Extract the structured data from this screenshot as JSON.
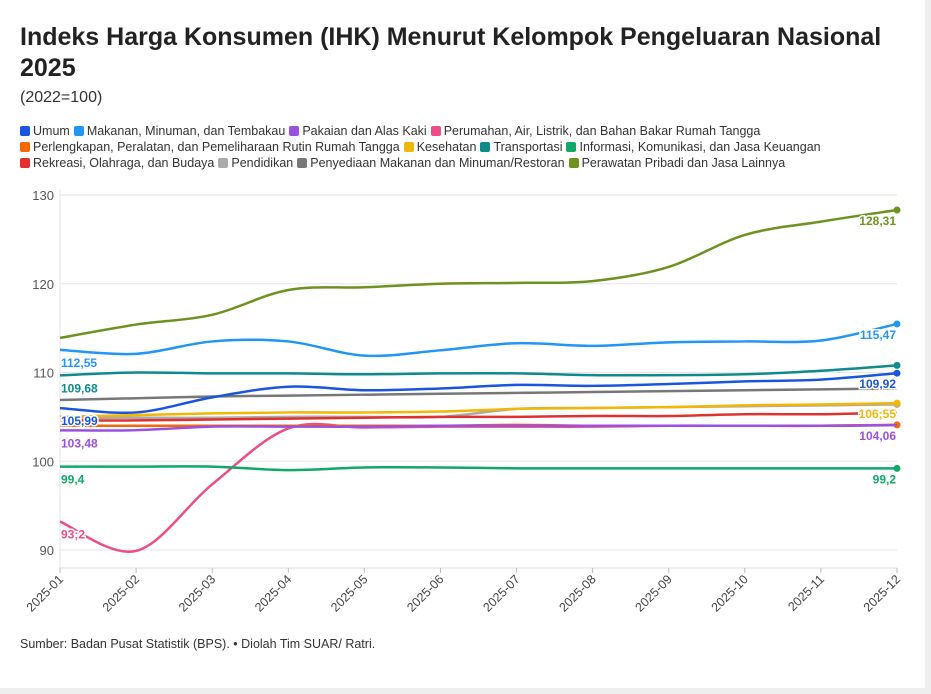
{
  "chart_data": {
    "type": "line",
    "title": "Indeks Harga Konsumen (IHK) Menurut Kelompok Pengeluaran Nasional 2025",
    "subtitle": "(2022=100)",
    "xlabel": "",
    "ylabel": "",
    "ylim": [
      88,
      131
    ],
    "yticks": [
      90,
      100,
      110,
      120,
      130
    ],
    "grid": true,
    "legend_position": "top",
    "x": [
      "2025-01",
      "2025-02",
      "2025-03",
      "2025-04",
      "2025-05",
      "2025-06",
      "2025-07",
      "2025-08",
      "2025-09",
      "2025-10",
      "2025-11",
      "2025-12"
    ],
    "series": [
      {
        "name": "Umum",
        "color": "#1a56db",
        "values": [
          105.99,
          105.5,
          107.2,
          108.4,
          108.0,
          108.2,
          108.6,
          108.5,
          108.7,
          109.0,
          109.2,
          109.92
        ],
        "start_label": "105,99",
        "end_label": "109,92",
        "end_dot": true
      },
      {
        "name": "Makanan, Minuman, dan Tembakau",
        "color": "#2196f3",
        "values": [
          112.55,
          112.1,
          113.5,
          113.5,
          111.9,
          112.5,
          113.3,
          113.0,
          113.4,
          113.5,
          113.6,
          115.47
        ],
        "start_label": "112,55",
        "end_label": "115,47",
        "end_dot": true
      },
      {
        "name": "Pakaian dan Alas Kaki",
        "color": "#9b51e0",
        "values": [
          103.48,
          103.5,
          103.9,
          103.9,
          103.9,
          104.0,
          104.0,
          104.0,
          104.0,
          104.0,
          104.0,
          104.06
        ],
        "start_label": "103,48",
        "end_label": "104,06",
        "end_dot": false
      },
      {
        "name": "Perumahan, Air, Listrik,  dan Bahan Bakar Rumah Tangga",
        "color": "#ec4f87",
        "values": [
          93.2,
          89.9,
          97.4,
          103.7,
          103.8,
          103.9,
          103.9,
          103.9,
          104.0,
          104.0,
          104.0,
          104.1
        ],
        "start_label": "93;2",
        "end_label": "",
        "end_dot": false
      },
      {
        "name": "Perlengkapan, Peralatan,  dan Pemeliharaan Rutin Rumah Tangga",
        "color": "#f76707",
        "values": [
          104.0,
          104.0,
          104.0,
          104.0,
          104.0,
          104.0,
          104.1,
          104.0,
          104.0,
          104.0,
          104.0,
          104.1
        ],
        "start_label": "",
        "end_label": "",
        "end_dot": true
      },
      {
        "name": "Kesehatan",
        "color": "#f2b705",
        "values": [
          105.0,
          105.2,
          105.4,
          105.5,
          105.5,
          105.6,
          105.9,
          106.0,
          106.1,
          106.3,
          106.4,
          106.55
        ],
        "start_label": "",
        "end_label": "106;55",
        "end_dot": true
      },
      {
        "name": "Transportasi",
        "color": "#0e8a8a",
        "values": [
          109.68,
          110.0,
          109.9,
          109.9,
          109.8,
          109.9,
          109.9,
          109.7,
          109.7,
          109.8,
          110.2,
          110.8
        ],
        "start_label": "109,68",
        "end_label": "",
        "end_dot": true
      },
      {
        "name": "Informasi, Komunikasi,  dan Jasa Keuangan",
        "color": "#10a86a",
        "values": [
          99.4,
          99.4,
          99.4,
          99.0,
          99.3,
          99.3,
          99.2,
          99.2,
          99.2,
          99.2,
          99.2,
          99.2
        ],
        "start_label": "99,4",
        "end_label": "99,2",
        "end_dot": true
      },
      {
        "name": "Rekreasi, Olahraga,  dan Budaya",
        "color": "#e03131",
        "values": [
          104.6,
          104.6,
          104.7,
          104.8,
          104.9,
          105.0,
          105.0,
          105.1,
          105.1,
          105.3,
          105.3,
          105.5
        ],
        "start_label": "",
        "end_label": "",
        "end_dot": false
      },
      {
        "name": "Pendidikan",
        "color": "#aaaaaa",
        "values": [
          104.9,
          104.9,
          104.9,
          105.0,
          105.0,
          105.0,
          105.9,
          106.0,
          106.1,
          106.2,
          106.3,
          106.4
        ],
        "start_label": "",
        "end_label": "",
        "end_dot": true
      },
      {
        "name": "Penyediaan Makanan dan Minuman/Restoran",
        "color": "#777777",
        "values": [
          106.9,
          107.1,
          107.3,
          107.4,
          107.5,
          107.6,
          107.7,
          107.8,
          107.9,
          108.0,
          108.1,
          108.2
        ],
        "start_label": "",
        "end_label": "",
        "end_dot": false
      },
      {
        "name": "Perawatan Pribadi dan Jasa Lainnya",
        "color": "#6f9120",
        "values": [
          113.9,
          115.4,
          116.5,
          119.3,
          119.6,
          120.0,
          120.1,
          120.3,
          121.9,
          125.5,
          127.0,
          128.31
        ],
        "start_label": "",
        "end_label": "128,31",
        "end_dot": true
      }
    ],
    "legend_rows": [
      [
        0,
        1,
        2,
        3
      ],
      [
        4,
        5,
        6,
        7
      ],
      [
        8,
        9,
        10,
        11
      ]
    ]
  },
  "source": "Sumber: Badan Pusat Statistik (BPS). • Diolah Tim SUAR/ Ratri."
}
